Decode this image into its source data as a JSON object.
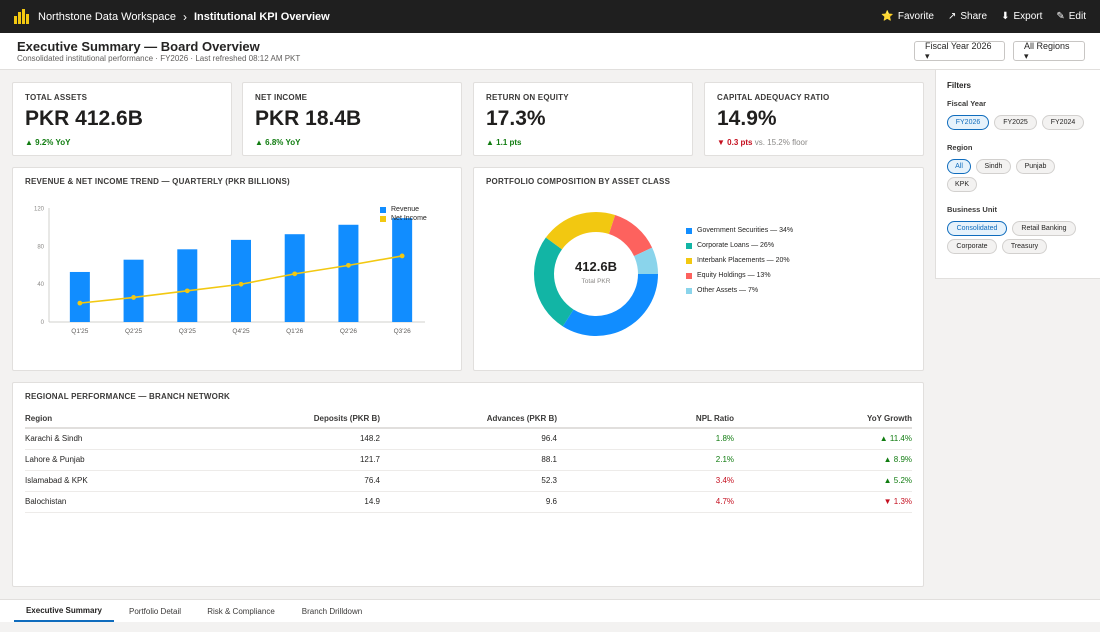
{
  "topbar": {
    "workspace": "Northstone Data Workspace",
    "separator": "›",
    "report": "Institutional KPI Overview",
    "actions": [
      {
        "icon": "star-icon",
        "glyph": "⭐",
        "label": "Favorite"
      },
      {
        "icon": "share-icon",
        "glyph": "↗",
        "label": "Share"
      },
      {
        "icon": "export-icon",
        "glyph": "⬇",
        "label": "Export"
      },
      {
        "icon": "edit-icon",
        "glyph": "✎",
        "label": "Edit"
      }
    ]
  },
  "header": {
    "title": "Executive Summary — Board Overview",
    "subtitle": "Consolidated institutional performance · FY2026 · Last refreshed 08:12 AM PKT",
    "fiscal_button": "Fiscal Year 2026 ▾",
    "region_button": "All Regions ▾"
  },
  "kpis": [
    {
      "label": "Total Assets",
      "value": "PKR 412.6B",
      "delta": "▲ 9.2% YoY",
      "note": "",
      "trend": "up"
    },
    {
      "label": "Net Income",
      "value": "PKR 18.4B",
      "delta": "▲ 6.8% YoY",
      "note": "",
      "trend": "up"
    },
    {
      "label": "Return on Equity",
      "value": "17.3%",
      "delta": "▲ 1.1 pts",
      "note": "",
      "trend": "up"
    },
    {
      "label": "Capital Adequacy Ratio",
      "value": "14.9%",
      "delta": "▼ 0.3 pts",
      "note": "vs. 15.2% floor",
      "trend": "down"
    }
  ],
  "colors": {
    "accent": "#0f6cbd",
    "revenue": "#118dff",
    "net_income": "#f2c811",
    "positive": "#107c10",
    "negative": "#c50f1f"
  },
  "chart_data": [
    {
      "type": "bar",
      "title": "Revenue & Net Income Trend — Quarterly (PKR Billions)",
      "categories": [
        "Q1'25",
        "Q2'25",
        "Q3'25",
        "Q4'25",
        "Q1'26",
        "Q2'26",
        "Q3'26"
      ],
      "series": [
        {
          "name": "Revenue",
          "type": "bar",
          "values": [
            53,
            66,
            77,
            87,
            93,
            103,
            110
          ]
        },
        {
          "name": "Net Income",
          "type": "line",
          "values": [
            20,
            26,
            33,
            40,
            51,
            60,
            70
          ]
        }
      ],
      "yticks": [
        0,
        40,
        80,
        120
      ],
      "ylim": [
        0,
        125
      ],
      "legend": "top-right",
      "grid": false
    },
    {
      "type": "pie",
      "title": "Portfolio Composition by Asset Class",
      "center_value": "412.6B",
      "center_label": "Total PKR",
      "slices": [
        {
          "label": "Government Securities — 34%",
          "value": 34,
          "color": "#118dff"
        },
        {
          "label": "Corporate Loans — 26%",
          "value": 26,
          "color": "#12b5a5"
        },
        {
          "label": "Interbank Placements — 20%",
          "value": 20,
          "color": "#f2c811"
        },
        {
          "label": "Equity Holdings — 13%",
          "value": 13,
          "color": "#fd625e"
        },
        {
          "label": "Other Assets — 7%",
          "value": 7,
          "color": "#8ad4eb"
        }
      ],
      "legend": "right"
    }
  ],
  "table": {
    "title": "Regional Performance — Branch Network",
    "columns": [
      "Region",
      "Deposits (PKR B)",
      "Advances (PKR B)",
      "NPL Ratio",
      "YoY Growth"
    ],
    "rows": [
      {
        "region": "Karachi & Sindh",
        "deposits": "148.2",
        "advances": "96.4",
        "npl": "1.8%",
        "npl_status": "good",
        "growth": "▲ 11.4%",
        "growth_status": "up"
      },
      {
        "region": "Lahore & Punjab",
        "deposits": "121.7",
        "advances": "88.1",
        "npl": "2.1%",
        "npl_status": "good",
        "growth": "▲ 8.9%",
        "growth_status": "up"
      },
      {
        "region": "Islamabad & KPK",
        "deposits": "76.4",
        "advances": "52.3",
        "npl": "3.4%",
        "npl_status": "bad",
        "growth": "▲ 5.2%",
        "growth_status": "up"
      },
      {
        "region": "Balochistan",
        "deposits": "14.9",
        "advances": "9.6",
        "npl": "4.7%",
        "npl_status": "bad",
        "growth": "▼ 1.3%",
        "growth_status": "down"
      }
    ]
  },
  "filters": {
    "title": "Filters",
    "groups": [
      {
        "label": "Fiscal Year",
        "chips": [
          "FY2026",
          "FY2025",
          "FY2024"
        ],
        "active": "FY2026"
      },
      {
        "label": "Region",
        "chips": [
          "All",
          "Sindh",
          "Punjab",
          "KPK"
        ],
        "active": "All"
      },
      {
        "label": "Business Unit",
        "chips": [
          "Consolidated",
          "Retail Banking",
          "Corporate",
          "Treasury"
        ],
        "active": "Consolidated"
      }
    ]
  },
  "tabs": [
    {
      "label": "Executive Summary",
      "active": true
    },
    {
      "label": "Portfolio Detail",
      "active": false
    },
    {
      "label": "Risk & Compliance",
      "active": false
    },
    {
      "label": "Branch Drilldown",
      "active": false
    }
  ]
}
